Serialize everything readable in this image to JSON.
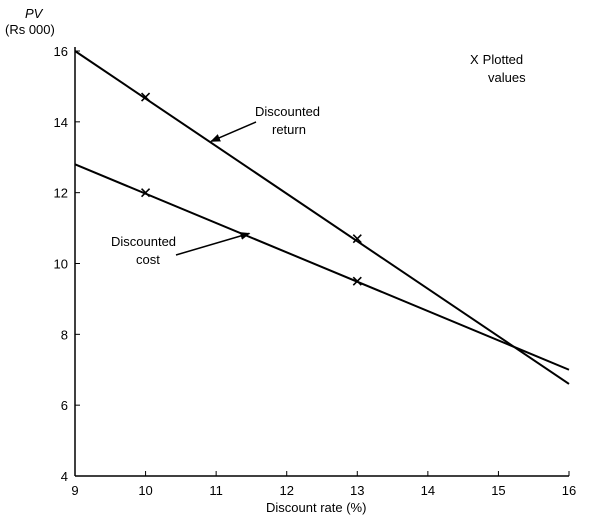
{
  "chart_data": {
    "type": "line",
    "title": "",
    "xlabel": "Discount rate (%)",
    "ylabel_line1": "PV",
    "ylabel_line2": "(Rs 000)",
    "xlim": [
      9,
      16
    ],
    "ylim": [
      4,
      16
    ],
    "x_ticks": [
      "9",
      "10",
      "11",
      "12",
      "13",
      "14",
      "15",
      "16"
    ],
    "y_ticks": [
      "4",
      "6",
      "8",
      "10",
      "12",
      "14",
      "16"
    ],
    "grid": false,
    "series": [
      {
        "line": {
          "x": [
            9,
            16
          ],
          "y": [
            16.0,
            6.6
          ]
        },
        "plotted": {
          "x": [
            10,
            13
          ],
          "y": [
            14.7,
            10.7
          ]
        }
      },
      {
        "line": {
          "x": [
            9,
            16
          ],
          "y": [
            12.8,
            7.0
          ]
        },
        "plotted": {
          "x": [
            10,
            13
          ],
          "y": [
            12.0,
            9.5
          ]
        }
      }
    ],
    "legend": "X Plotted values",
    "legend_marker": "X",
    "legend_line1": "Plotted",
    "legend_line2": "values",
    "annotations": [
      {
        "line1": "Discounted",
        "line2": "return",
        "target_x": 10.9,
        "target_y": 13.45
      },
      {
        "line1": "Discounted",
        "line2": "cost",
        "target_x": 11.5,
        "target_y": 10.85
      }
    ]
  }
}
